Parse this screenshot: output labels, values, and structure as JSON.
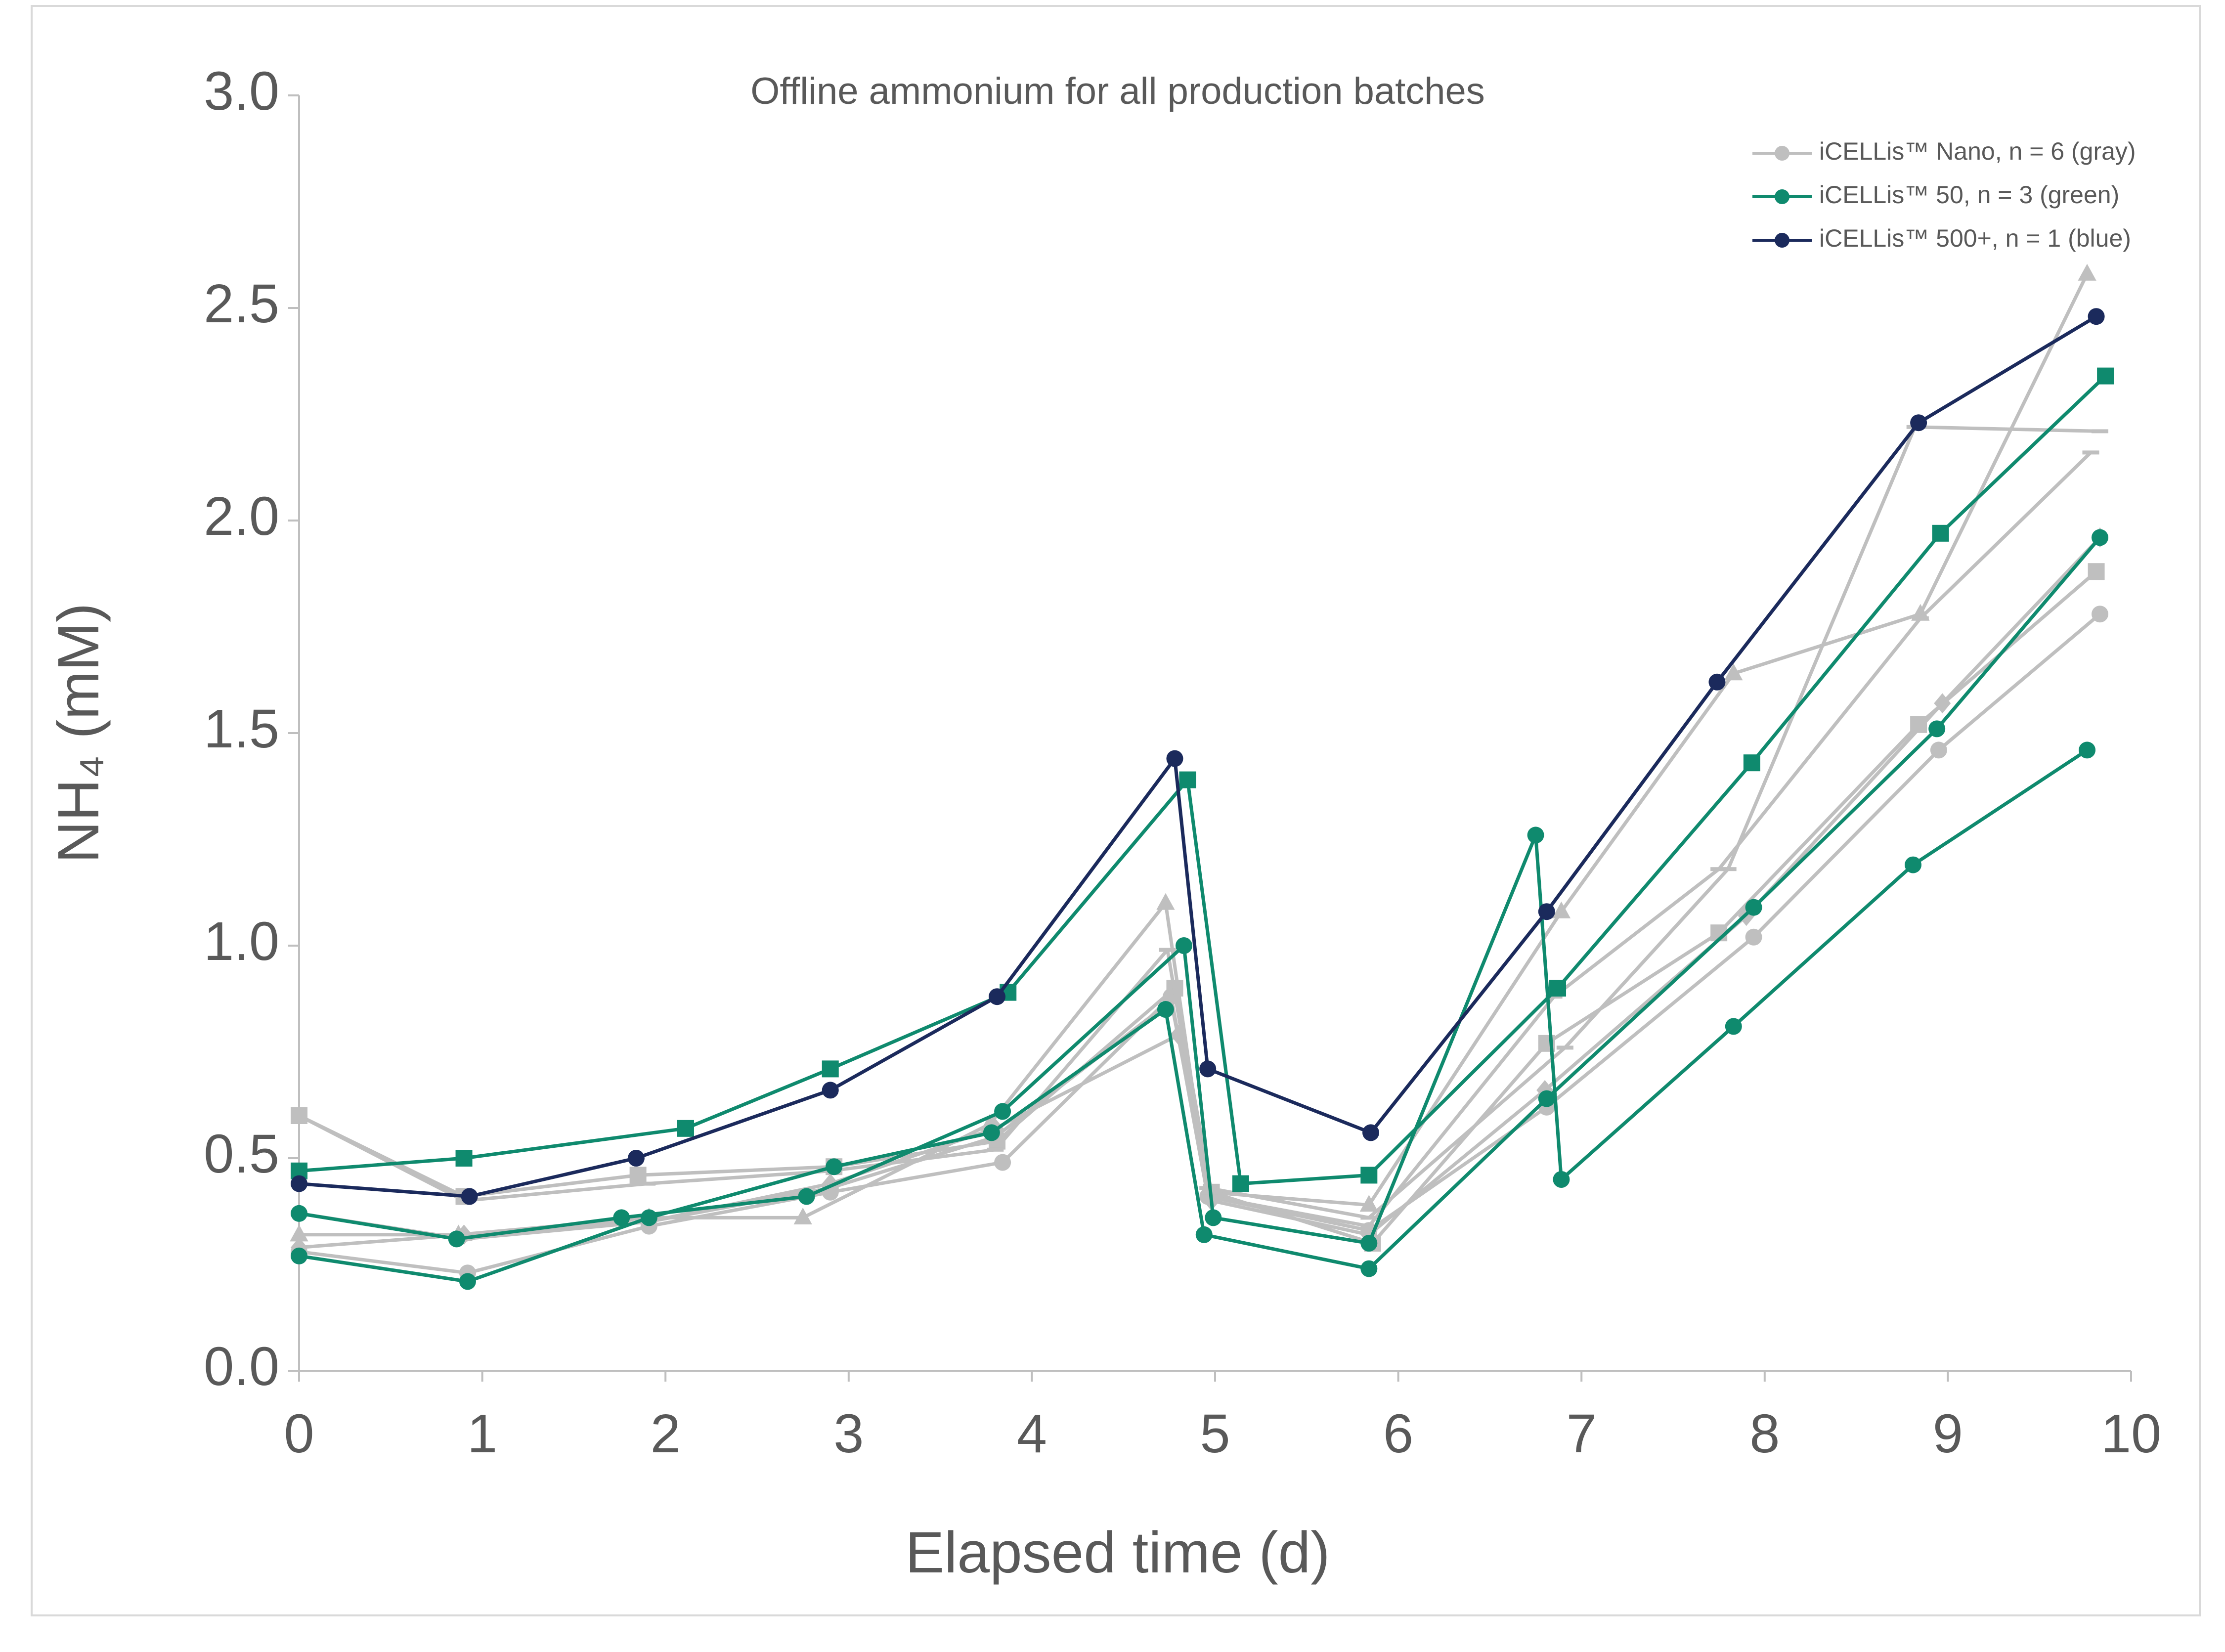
{
  "chart_data": {
    "type": "line",
    "title": "Offline ammonium for all production batches",
    "x_label": "Elapsed time (d)",
    "y_label": "NH₄ (mM)",
    "xlim": [
      0,
      10
    ],
    "ylim": [
      0,
      3
    ],
    "xticks": [
      0,
      1,
      2,
      3,
      4,
      5,
      6,
      7,
      8,
      9,
      10
    ],
    "yticks": [
      {
        "value": 0,
        "label": "0.0"
      },
      {
        "value": 0.5,
        "label": "0.5"
      },
      {
        "value": 1,
        "label": "1.0"
      },
      {
        "value": 1.5,
        "label": "1.5"
      },
      {
        "value": 2,
        "label": "2.0"
      },
      {
        "value": 2.5,
        "label": "2.5"
      },
      {
        "value": 3,
        "label": "3.0"
      }
    ],
    "legend": "top-right",
    "series": [
      {
        "name": "iCELLis™ Nano, n = 6 (gray)",
        "color": "#bfbfbf",
        "marker": "circle",
        "x": [
          0,
          0.92,
          1.91,
          2.9,
          3.84,
          4.76,
          4.96,
          5.84,
          6.81,
          7.94,
          8.95,
          9.83
        ],
        "values": [
          0.28,
          0.23,
          0.34,
          0.42,
          0.49,
          0.88,
          0.41,
          0.33,
          0.62,
          1.02,
          1.46,
          1.78
        ]
      },
      {
        "color": "#bfbfbf",
        "marker": "triangle",
        "x": [
          0,
          0.87,
          1.91,
          2.75,
          3.77,
          4.73,
          4.96,
          5.84,
          6.89,
          7.83,
          8.85,
          9.76
        ],
        "values": [
          0.32,
          0.32,
          0.36,
          0.36,
          0.58,
          1.1,
          0.42,
          0.39,
          1.08,
          1.64,
          1.78,
          2.58
        ]
      },
      {
        "color": "#bfbfbf",
        "marker": "square",
        "x": [
          0,
          0.9,
          1.85,
          2.92,
          3.81,
          4.78,
          4.98,
          5.86,
          6.81,
          7.75,
          8.84,
          9.81
        ],
        "values": [
          0.6,
          0.41,
          0.46,
          0.48,
          0.54,
          0.9,
          0.42,
          0.3,
          0.77,
          1.03,
          1.52,
          1.88
        ]
      },
      {
        "color": "#bfbfbf",
        "marker": "dash",
        "x": [
          0,
          0.9,
          1.9,
          2.9,
          3.8,
          4.74,
          4.96,
          5.84,
          6.91,
          7.8,
          8.82,
          9.83
        ],
        "values": [
          0.6,
          0.4,
          0.44,
          0.47,
          0.52,
          0.99,
          0.43,
          0.36,
          0.76,
          1.18,
          2.22,
          2.21
        ]
      },
      {
        "color": "#bfbfbf",
        "marker": "diamond",
        "x": [
          0,
          0.9,
          1.9,
          2.9,
          3.8,
          4.8,
          4.98,
          5.84,
          6.8,
          7.9,
          8.97,
          9.83
        ],
        "values": [
          0.29,
          0.32,
          0.35,
          0.44,
          0.57,
          0.79,
          0.4,
          0.32,
          0.66,
          1.07,
          1.57,
          1.96
        ]
      },
      {
        "color": "#bfbfbf",
        "marker": "dash",
        "x": [
          0,
          0.9,
          1.9,
          2.9,
          3.8,
          4.76,
          4.97,
          5.84,
          6.85,
          7.75,
          8.85,
          9.78
        ],
        "values": [
          0.37,
          0.31,
          0.35,
          0.43,
          0.55,
          0.87,
          0.41,
          0.34,
          0.88,
          1.18,
          1.77,
          2.16
        ]
      },
      {
        "name": "iCELLis™ 50, n = 3 (green)",
        "color": "#0f8a6e",
        "marker": "circle",
        "x": [
          0,
          0.86,
          1.76,
          2.77,
          3.84,
          4.83,
          4.99,
          5.84,
          6.75,
          6.89,
          7.83,
          8.81,
          9.76
        ],
        "values": [
          0.37,
          0.31,
          0.36,
          0.41,
          0.61,
          1.0,
          0.36,
          0.3,
          1.26,
          0.45,
          0.81,
          1.19,
          1.46
        ]
      },
      {
        "color": "#0f8a6e",
        "marker": "circle",
        "x": [
          0,
          0.92,
          1.91,
          2.92,
          3.78,
          4.73,
          4.94,
          5.84,
          6.81,
          7.94,
          8.94,
          9.83
        ],
        "values": [
          0.27,
          0.21,
          0.36,
          0.48,
          0.56,
          0.85,
          0.32,
          0.24,
          0.64,
          1.09,
          1.51,
          1.96
        ]
      },
      {
        "color": "#0f8a6e",
        "marker": "square",
        "x": [
          0,
          0.9,
          2.11,
          2.9,
          3.87,
          4.85,
          5.14,
          5.84,
          6.87,
          7.93,
          8.96,
          9.86
        ],
        "values": [
          0.47,
          0.5,
          0.57,
          0.71,
          0.89,
          1.39,
          0.44,
          0.46,
          0.9,
          1.43,
          1.97,
          2.34
        ]
      },
      {
        "name": "iCELLis™ 500+, n = 1 (blue)",
        "color": "#1b2a5c",
        "marker": "circle",
        "x": [
          0,
          0.93,
          1.84,
          2.9,
          3.81,
          4.78,
          4.96,
          5.85,
          6.81,
          7.74,
          8.84,
          9.81
        ],
        "values": [
          0.44,
          0.41,
          0.5,
          0.66,
          0.88,
          1.44,
          0.71,
          0.56,
          1.08,
          1.62,
          2.23,
          2.48
        ]
      }
    ]
  }
}
